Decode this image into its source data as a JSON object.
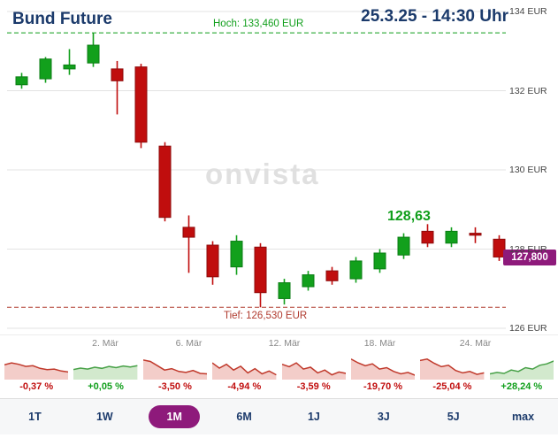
{
  "header": {
    "title": "Bund Future",
    "timestamp": "25.3.25 - 14:30 Uhr"
  },
  "chart": {
    "watermark": "onvista",
    "hoch_label": "Hoch: 133,460 EUR",
    "tief_label": "Tief: 126,530 EUR",
    "current_price_label": "128,63",
    "price_badge": "127,800",
    "y_axis_labels": [
      "134 EUR",
      "132 EUR",
      "130 EUR",
      "128 EUR",
      "126 EUR"
    ]
  },
  "chart_data": {
    "type": "candlestick",
    "title": "Bund Future",
    "period": "1M",
    "ylim": [
      126,
      134
    ],
    "y_ticks": [
      134,
      132,
      130,
      128,
      126
    ],
    "high": 133.46,
    "low": 126.53,
    "last": 127.8,
    "annotation_high_recent": 128.63,
    "x_ticks": [
      {
        "label": "2. Mär",
        "index": 3.5
      },
      {
        "label": "6. Mär",
        "index": 7
      },
      {
        "label": "12. Mär",
        "index": 11
      },
      {
        "label": "18. Mär",
        "index": 15
      },
      {
        "label": "24. Mär",
        "index": 19
      }
    ],
    "candles": [
      {
        "date": "25.2",
        "o": 132.15,
        "h": 132.45,
        "l": 132.05,
        "c": 132.35
      },
      {
        "date": "26.2",
        "o": 132.3,
        "h": 132.85,
        "l": 132.2,
        "c": 132.8
      },
      {
        "date": "27.2",
        "o": 132.55,
        "h": 133.05,
        "l": 132.4,
        "c": 132.65
      },
      {
        "date": "28.2",
        "o": 132.7,
        "h": 133.46,
        "l": 132.6,
        "c": 133.15
      },
      {
        "date": "3.3",
        "o": 132.55,
        "h": 132.75,
        "l": 131.4,
        "c": 132.25
      },
      {
        "date": "4.3",
        "o": 132.6,
        "h": 132.68,
        "l": 130.55,
        "c": 130.7
      },
      {
        "date": "5.3",
        "o": 130.6,
        "h": 130.7,
        "l": 128.7,
        "c": 128.8
      },
      {
        "date": "6.3",
        "o": 128.55,
        "h": 128.85,
        "l": 127.4,
        "c": 128.3
      },
      {
        "date": "7.3",
        "o": 128.1,
        "h": 128.2,
        "l": 127.1,
        "c": 127.3
      },
      {
        "date": "10.3",
        "o": 127.55,
        "h": 128.35,
        "l": 127.35,
        "c": 128.2
      },
      {
        "date": "11.3",
        "o": 128.05,
        "h": 128.15,
        "l": 126.53,
        "c": 126.9
      },
      {
        "date": "12.3",
        "o": 126.75,
        "h": 127.25,
        "l": 126.6,
        "c": 127.15
      },
      {
        "date": "13.3",
        "o": 127.05,
        "h": 127.45,
        "l": 126.95,
        "c": 127.35
      },
      {
        "date": "14.3",
        "o": 127.45,
        "h": 127.55,
        "l": 127.1,
        "c": 127.2
      },
      {
        "date": "17.3",
        "o": 127.25,
        "h": 127.8,
        "l": 127.15,
        "c": 127.7
      },
      {
        "date": "18.3",
        "o": 127.5,
        "h": 128.0,
        "l": 127.4,
        "c": 127.9
      },
      {
        "date": "19.3",
        "o": 127.85,
        "h": 128.4,
        "l": 127.75,
        "c": 128.3
      },
      {
        "date": "20.3",
        "o": 128.45,
        "h": 128.63,
        "l": 128.05,
        "c": 128.15
      },
      {
        "date": "21.3",
        "o": 128.15,
        "h": 128.55,
        "l": 128.05,
        "c": 128.45
      },
      {
        "date": "24.3",
        "o": 128.4,
        "h": 128.55,
        "l": 128.15,
        "c": 128.35
      },
      {
        "date": "25.3",
        "o": 128.25,
        "h": 128.35,
        "l": 127.7,
        "c": 127.8
      }
    ],
    "colors": {
      "up": "#12a01c",
      "down": "#c00d0d"
    }
  },
  "periods": [
    {
      "label": "1T",
      "change": "-0,37 %",
      "trend": "down",
      "spark": [
        62,
        70,
        64,
        55,
        58,
        47,
        42,
        44,
        36,
        32
      ]
    },
    {
      "label": "1W",
      "change": "+0,05 %",
      "trend": "up",
      "spark": [
        42,
        48,
        44,
        52,
        47,
        55,
        50,
        57,
        53,
        58
      ]
    },
    {
      "label": "1M",
      "change": "-3,50 %",
      "trend": "down",
      "spark": [
        82,
        76,
        58,
        40,
        46,
        34,
        30,
        38,
        26,
        24
      ]
    },
    {
      "label": "6M",
      "change": "-4,94 %",
      "trend": "down",
      "spark": [
        70,
        48,
        64,
        40,
        56,
        28,
        46,
        24,
        36,
        20
      ]
    },
    {
      "label": "1J",
      "change": "-3,59 %",
      "trend": "down",
      "spark": [
        64,
        54,
        70,
        44,
        52,
        28,
        40,
        20,
        32,
        26
      ]
    },
    {
      "label": "3J",
      "change": "-19,70 %",
      "trend": "down",
      "spark": [
        86,
        70,
        58,
        66,
        44,
        50,
        34,
        24,
        30,
        18
      ]
    },
    {
      "label": "5J",
      "change": "-25,04 %",
      "trend": "down",
      "spark": [
        80,
        86,
        68,
        54,
        60,
        38,
        28,
        34,
        22,
        28
      ]
    },
    {
      "label": "max",
      "change": "+28,24 %",
      "trend": "up",
      "spark": [
        24,
        30,
        26,
        40,
        34,
        50,
        44,
        60,
        66,
        78
      ]
    }
  ],
  "tabs": {
    "active": "1M"
  },
  "colors": {
    "navy": "#1b3a6b",
    "accent": "#8e1a7b",
    "up": "#0f9e1a",
    "down": "#c00d0d",
    "tief_line": "#b03a2e",
    "grid": "#e3e3e3"
  }
}
